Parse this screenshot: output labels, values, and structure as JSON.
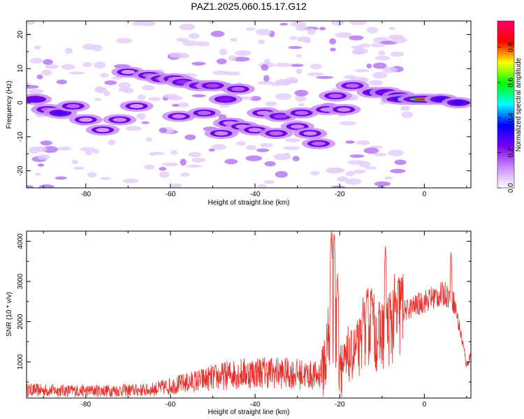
{
  "chart_data": [
    {
      "type": "heatmap",
      "title": "PAZ1.2025.060.15.17.G12",
      "xlabel": "Height of straight line (km)",
      "ylabel": "Frequency (Hz)",
      "xlim": [
        -94,
        11
      ],
      "ylim": [
        -25,
        24
      ],
      "xticks": [
        -80,
        -60,
        -40,
        -20,
        0
      ],
      "yticks": [
        -20,
        -10,
        0,
        10,
        20
      ],
      "colorbar": {
        "label": "Normalized spectral amplitude",
        "range": [
          0,
          0.95
        ],
        "ticks": [
          0.0,
          0.2,
          0.4,
          0.6,
          0.8
        ],
        "tick_labels": [
          "0.0",
          "0.2",
          "0.4",
          "0.6",
          "0.8"
        ],
        "colors": [
          "#ffffff",
          "#cc88ff",
          "#7700ee",
          "#0000ff",
          "#00ffff",
          "#00ff00",
          "#ffff00",
          "#ff0000",
          "#ff0066"
        ]
      },
      "blobs": [
        {
          "x": -92,
          "y": 1,
          "v": 0.25
        },
        {
          "x": -89,
          "y": -2,
          "v": 0.15
        },
        {
          "x": -86,
          "y": -3,
          "v": 0.28
        },
        {
          "x": -83,
          "y": -1,
          "v": 0.15
        },
        {
          "x": -80,
          "y": -5,
          "v": 0.1
        },
        {
          "x": -76,
          "y": -8,
          "v": 0.1
        },
        {
          "x": -72,
          "y": -5,
          "v": 0.12
        },
        {
          "x": -70,
          "y": 9,
          "v": 0.1
        },
        {
          "x": -68,
          "y": -1,
          "v": 0.1
        },
        {
          "x": -65,
          "y": 8,
          "v": 0.15
        },
        {
          "x": -62,
          "y": 7,
          "v": 0.18
        },
        {
          "x": -59,
          "y": 7,
          "v": 0.15
        },
        {
          "x": -58,
          "y": -4,
          "v": 0.12
        },
        {
          "x": -57,
          "y": 6,
          "v": 0.2
        },
        {
          "x": -53,
          "y": 5,
          "v": 0.2
        },
        {
          "x": -52,
          "y": -3,
          "v": 0.15
        },
        {
          "x": -50,
          "y": 5,
          "v": 0.18
        },
        {
          "x": -48,
          "y": -9,
          "v": 0.12
        },
        {
          "x": -47,
          "y": 1,
          "v": 0.22
        },
        {
          "x": -46,
          "y": -6,
          "v": 0.12
        },
        {
          "x": -44,
          "y": 4,
          "v": 0.15
        },
        {
          "x": -43,
          "y": -7,
          "v": 0.12
        },
        {
          "x": -40,
          "y": -8,
          "v": 0.12
        },
        {
          "x": -38,
          "y": -3,
          "v": 0.12
        },
        {
          "x": -35,
          "y": -9,
          "v": 0.15
        },
        {
          "x": -34,
          "y": -4,
          "v": 0.18
        },
        {
          "x": -30,
          "y": -7,
          "v": 0.12
        },
        {
          "x": -29,
          "y": -3,
          "v": 0.15
        },
        {
          "x": -27,
          "y": -9,
          "v": 0.12
        },
        {
          "x": -25,
          "y": -12,
          "v": 0.15
        },
        {
          "x": -23,
          "y": -2,
          "v": 0.12
        },
        {
          "x": -21,
          "y": 2,
          "v": 0.15
        },
        {
          "x": -19,
          "y": -2,
          "v": 0.12
        },
        {
          "x": -17,
          "y": 5,
          "v": 0.15
        },
        {
          "x": -12,
          "y": 3,
          "v": 0.3
        },
        {
          "x": -9,
          "y": 3,
          "v": 0.25
        },
        {
          "x": -6,
          "y": 2,
          "v": 0.35
        },
        {
          "x": -4,
          "y": 1,
          "v": 0.55
        },
        {
          "x": 0,
          "y": 1,
          "v": 0.95
        },
        {
          "x": 4,
          "y": 1,
          "v": 0.3
        },
        {
          "x": 8,
          "y": 0,
          "v": 0.3
        }
      ]
    },
    {
      "type": "line",
      "xlabel": "Height of straight line (km)",
      "ylabel": "SNR (10 * v/v)",
      "xlim": [
        -94,
        11
      ],
      "ylim": [
        100,
        4250
      ],
      "xticks": [
        -80,
        -60,
        -40,
        -20,
        0
      ],
      "yticks": [
        1000,
        2000,
        3000,
        4000
      ],
      "line_color": "#e8302a",
      "envelope": [
        {
          "x": -94,
          "y": 300
        },
        {
          "x": -80,
          "y": 280
        },
        {
          "x": -65,
          "y": 300
        },
        {
          "x": -55,
          "y": 500
        },
        {
          "x": -45,
          "y": 700
        },
        {
          "x": -38,
          "y": 750
        },
        {
          "x": -30,
          "y": 700
        },
        {
          "x": -25,
          "y": 650
        },
        {
          "x": -23,
          "y": 1200
        },
        {
          "x": -22,
          "y": 2500
        },
        {
          "x": -21,
          "y": 1800
        },
        {
          "x": -19,
          "y": 800
        },
        {
          "x": -17,
          "y": 1200
        },
        {
          "x": -15,
          "y": 1400
        },
        {
          "x": -13,
          "y": 2000
        },
        {
          "x": -11,
          "y": 1600
        },
        {
          "x": -9,
          "y": 1800
        },
        {
          "x": -6,
          "y": 2200
        },
        {
          "x": -2,
          "y": 2400
        },
        {
          "x": 2,
          "y": 2600
        },
        {
          "x": 5,
          "y": 2700
        },
        {
          "x": 7,
          "y": 2500
        },
        {
          "x": 9,
          "y": 1500
        },
        {
          "x": 10,
          "y": 900
        },
        {
          "x": 11,
          "y": 1200
        }
      ],
      "spikes": [
        {
          "x": -22.0,
          "y": 4250
        },
        {
          "x": -21.3,
          "y": 4250
        },
        {
          "x": -20.5,
          "y": 3200
        },
        {
          "x": -14.5,
          "y": 2600
        },
        {
          "x": -12.5,
          "y": 2900
        },
        {
          "x": -9.2,
          "y": 3950
        },
        {
          "x": -5.5,
          "y": 2750
        },
        {
          "x": 6.3,
          "y": 3800
        }
      ]
    }
  ]
}
